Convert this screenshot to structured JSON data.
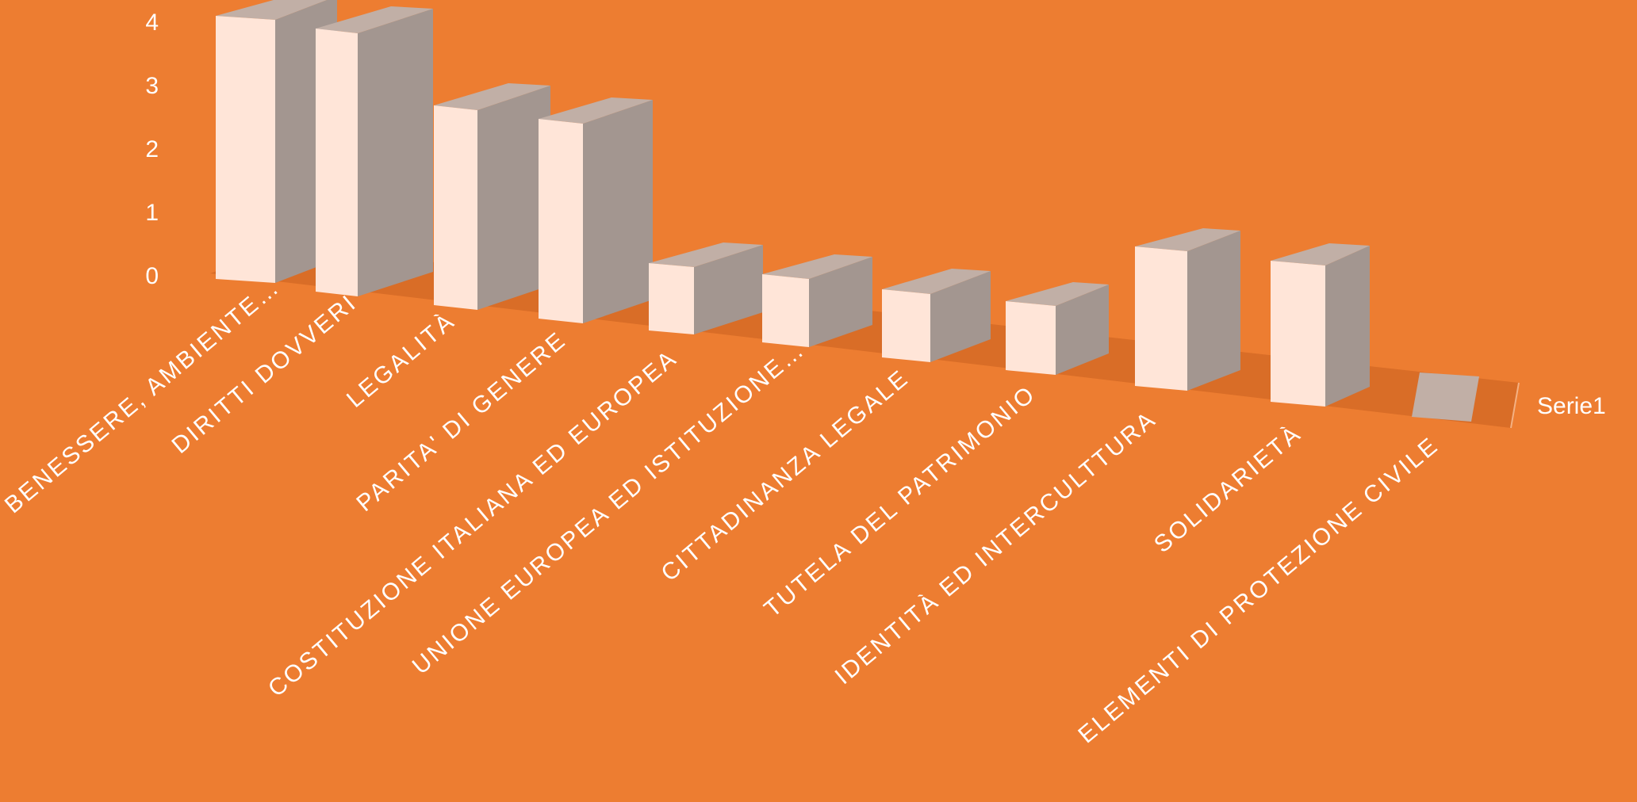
{
  "chart_data": {
    "type": "bar",
    "style": "3d-column",
    "categories": [
      "BENESSERE, AMBIENTE…",
      "DIRITTI  DOVVERI",
      "LEGALITÀ",
      "PARITA' DI GENERE",
      "COSTITUZIONE ITALIANA ED EUROPEA",
      "UNIONE EUROPEA ED ISTITUZIONE…",
      "CITTADINANZA LEGALE",
      "TUTELA DEL PATRIMONIO",
      "IDENTITÀ  ED INTERCULTTURA",
      "SOLIDARIETÀ",
      "ELEMENTI DI PROTEZIONE CIVILE"
    ],
    "series": [
      {
        "name": "Serie1",
        "values": [
          4,
          4,
          3,
          3,
          1,
          1,
          1,
          1,
          2,
          2,
          0
        ]
      }
    ],
    "y_ticks": [
      "0",
      "1",
      "2",
      "3",
      "4"
    ],
    "ylim": [
      0,
      4
    ],
    "legend_position": "right",
    "colors": {
      "background": "#ED7D31",
      "floor": "#D96D27",
      "bar_front": "#FFE5D8",
      "bar_side": "#A39690",
      "bar_top": "#C1AFA6",
      "text": "#FFFFFF"
    }
  }
}
